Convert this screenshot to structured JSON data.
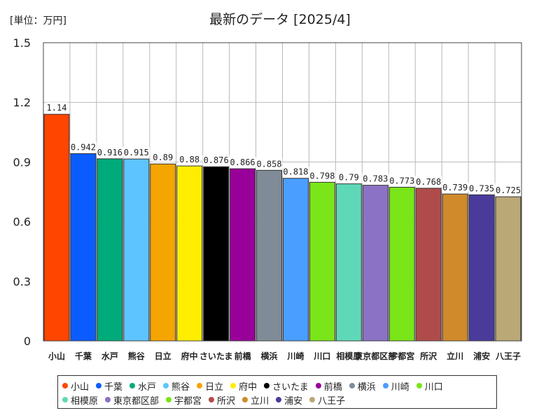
{
  "chart_data": {
    "type": "bar",
    "title": "最新のデータ [2025/4]",
    "unit_label": "[単位：万円]",
    "xlabel": "",
    "ylabel": "",
    "ylim": [
      0,
      1.5
    ],
    "yticks": [
      "0",
      "0.3",
      "0.6",
      "0.9",
      "1.2",
      "1.5"
    ],
    "ytick_values": [
      0,
      0.3,
      0.6,
      0.9,
      1.2,
      1.5
    ],
    "grid": true,
    "legend_position": "bottom",
    "categories": [
      "小山",
      "千葉",
      "水戸",
      "熊谷",
      "日立",
      "府中",
      "さいたま",
      "前橋",
      "横浜",
      "川崎",
      "川口",
      "相模原",
      "東京都区部",
      "宇都宮",
      "所沢",
      "立川",
      "浦安",
      "八王子"
    ],
    "x_tick_labels": [
      "小山",
      "千葉",
      "水戸",
      "熊谷",
      "日立",
      "府中",
      "さいたま",
      "前橋",
      "横浜",
      "川崎",
      "川口",
      "相模原",
      "東京都区部",
      "宇都宮",
      "所沢",
      "立川",
      "浦安",
      "八王子"
    ],
    "values": [
      1.14,
      0.942,
      0.916,
      0.915,
      0.89,
      0.88,
      0.876,
      0.866,
      0.858,
      0.818,
      0.798,
      0.79,
      0.783,
      0.773,
      0.768,
      0.739,
      0.735,
      0.725
    ],
    "value_labels": [
      "1.14",
      "0.942",
      "0.916",
      "0.915",
      "0.89",
      "0.88",
      "0.876",
      "0.866",
      "0.858",
      "0.818",
      "0.798",
      "0.79",
      "0.783",
      "0.773",
      "0.768",
      "0.739",
      "0.735",
      "0.725"
    ],
    "colors": [
      "#ff4500",
      "#0b5cff",
      "#00ab7a",
      "#5ec4ff",
      "#f5a500",
      "#ffee00",
      "#000000",
      "#990099",
      "#7f8c98",
      "#4a9eff",
      "#7ae518",
      "#5fd8b8",
      "#8b72c4",
      "#7ae518",
      "#b04b4b",
      "#d08a2b",
      "#4a3a9a",
      "#bba877"
    ],
    "legend": [
      "小山",
      "千葉",
      "水戸",
      "熊谷",
      "日立",
      "府中",
      "さいたま",
      "前橋",
      "横浜",
      "川崎",
      "川口",
      "相模原",
      "東京都区部",
      "宇都宮",
      "所沢",
      "立川",
      "浦安",
      "八王子"
    ]
  }
}
